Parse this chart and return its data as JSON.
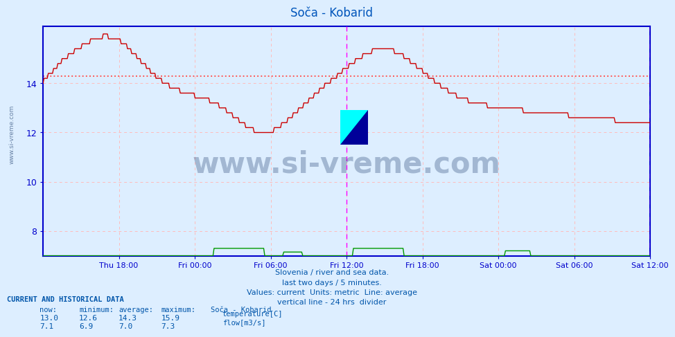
{
  "title": "Soča - Kobarid",
  "subtitle_lines": [
    "Slovenia / river and sea data.",
    "last two days / 5 minutes.",
    "Values: current  Units: metric  Line: average",
    "vertical line - 24 hrs  divider"
  ],
  "bg_color": "#ddeeff",
  "plot_bg_color": "#ddeeff",
  "title_color": "#0055bb",
  "axis_color": "#0000cc",
  "grid_color": "#ffbbbb",
  "temp_color": "#cc0000",
  "flow_color": "#009900",
  "avg_temp_color": "#ff5555",
  "avg_flow_color": "#005500",
  "divider_color": "#ff00ff",
  "now_temp": 13.0,
  "min_temp": 12.6,
  "avg_temp": 14.3,
  "max_temp": 15.9,
  "now_flow": 7.1,
  "min_flow": 6.9,
  "avg_flow": 7.0,
  "max_flow": 7.3,
  "yticks": [
    8,
    10,
    12,
    14
  ],
  "ymin": 7.0,
  "ymax": 16.3,
  "watermark": "www.si-vreme.com",
  "watermark_color": "#1a3a6a",
  "text_color": "#0055aa",
  "legend_label_temp": "temperature[C]",
  "legend_label_flow": "flow[m3/s]",
  "station_name": "Soča - Kobarid",
  "xtick_pos": [
    6,
    12,
    18,
    24,
    30,
    36,
    42,
    48
  ],
  "xtick_labels": [
    "Thu 18:00",
    "Fri 00:00",
    "Fri 06:00",
    "Fri 12:00",
    "Fri 18:00",
    "Sat 00:00",
    "Sat 06:00",
    "Sat 12:00"
  ]
}
